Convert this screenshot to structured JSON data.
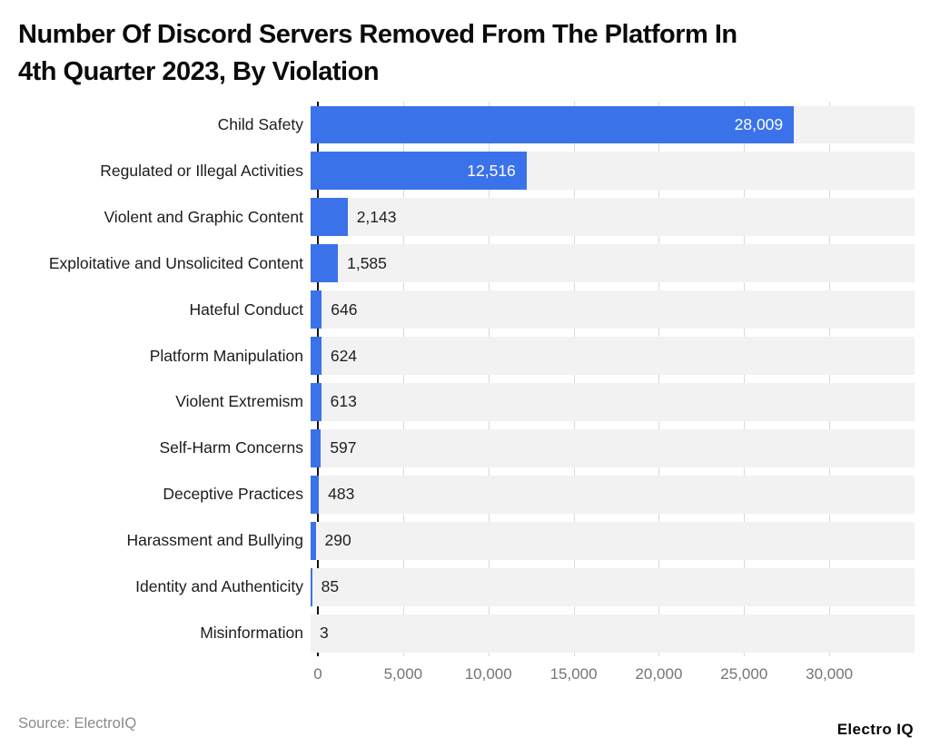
{
  "title_lines": [
    "Number Of Discord Servers Removed From The Platform In",
    "4th Quarter 2023, By Violation"
  ],
  "source": "Source: ElectroIQ",
  "brand": "Electro IQ",
  "colors": {
    "bar": "#3a72e9",
    "row_band": "#f2f2f2",
    "grid": "#d9d9d9",
    "axis": "#111111",
    "tick_label": "#757575",
    "value_inside": "#ffffff",
    "value_outside": "#1f1f1f"
  },
  "chart_data": {
    "type": "bar",
    "orientation": "horizontal",
    "title": "Number Of Discord Servers Removed From The Platform In 4th Quarter 2023, By Violation",
    "categories": [
      "Child Safety",
      "Regulated or Illegal Activities",
      "Violent and Graphic Content",
      "Exploitative and Unsolicited Content",
      "Hateful Conduct",
      "Platform Manipulation",
      "Violent Extremism",
      "Self-Harm Concerns",
      "Deceptive Practices",
      "Harassment and Bullying",
      "Identity and Authenticity",
      "Misinformation"
    ],
    "values": [
      28009,
      12516,
      2143,
      1585,
      646,
      624,
      613,
      597,
      483,
      290,
      85,
      3
    ],
    "value_labels": [
      "28,009",
      "12,516",
      "2,143",
      "1,585",
      "646",
      "624",
      "613",
      "597",
      "483",
      "290",
      "85",
      "3"
    ],
    "xlim": [
      0,
      35000
    ],
    "xticks": [
      0,
      5000,
      10000,
      15000,
      20000,
      25000,
      30000
    ],
    "xtick_labels": [
      "0",
      "5,000",
      "10,000",
      "15,000",
      "20,000",
      "25,000",
      "30,000"
    ],
    "xlabel": "",
    "ylabel": "",
    "grid": true,
    "legend": false
  }
}
